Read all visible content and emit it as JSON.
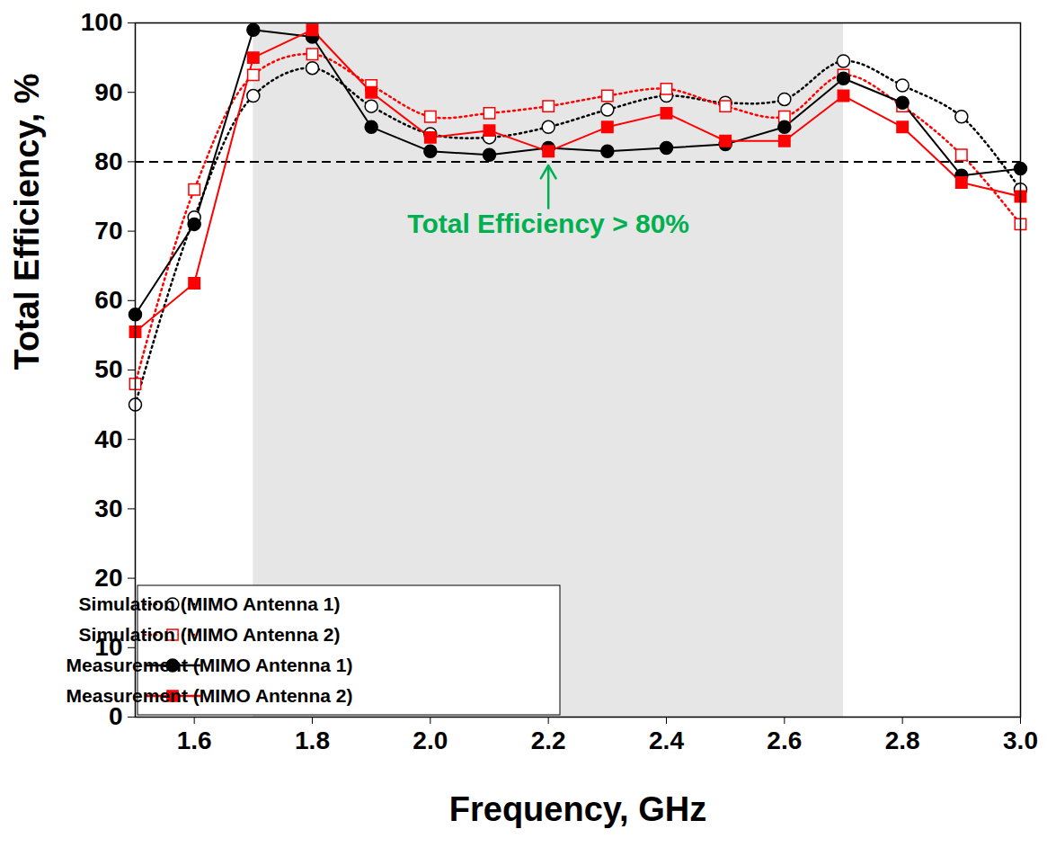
{
  "chart_data": {
    "type": "line",
    "x_label": "Frequency, GHz",
    "y_label": "Total Efficiency, %",
    "x": [
      1.5,
      1.6,
      1.7,
      1.8,
      1.9,
      2.0,
      2.1,
      2.2,
      2.3,
      2.4,
      2.5,
      2.6,
      2.7,
      2.8,
      2.9,
      3.0
    ],
    "series": [
      {
        "name": "Simulation (MIMO Antenna 1)",
        "color": "#000000",
        "line_style": "dotted",
        "marker": "circle_open",
        "values": [
          45,
          72,
          89.5,
          93.5,
          88,
          84,
          83.5,
          85,
          87.5,
          89.5,
          88.5,
          89,
          94.5,
          91,
          86.5,
          76
        ]
      },
      {
        "name": "Simulation (MIMO Antenna 2)",
        "color": "#ff0000",
        "line_style": "dotted",
        "marker": "square_open",
        "values": [
          48,
          76,
          92.5,
          95.5,
          91,
          86.5,
          87,
          88,
          89.5,
          90.5,
          88,
          86.5,
          92.5,
          88,
          81,
          71
        ]
      },
      {
        "name": "Measurement (MIMO Antenna 1)",
        "color": "#000000",
        "line_style": "solid",
        "marker": "circle",
        "values": [
          58,
          71,
          99,
          98,
          85,
          81.5,
          81,
          82,
          81.5,
          82,
          82.5,
          85,
          92,
          88.5,
          78,
          79
        ]
      },
      {
        "name": "Measurement (MIMO Antenna 2)",
        "color": "#ff0000",
        "line_style": "solid",
        "marker": "square",
        "values": [
          55.5,
          62.5,
          95,
          99,
          90,
          83.5,
          84.5,
          81.5,
          85,
          87,
          83,
          83,
          89.5,
          85,
          77,
          75
        ]
      }
    ],
    "xlim": [
      1.5,
      3.0
    ],
    "xticks": [
      1.6,
      1.8,
      {
        "value": 2,
        "label": "2.0"
      },
      2.2,
      2.4,
      2.6,
      2.8,
      {
        "value": 3,
        "label": "3.0"
      }
    ],
    "ylim": [
      0,
      100
    ],
    "yticks": [
      0,
      10,
      20,
      30,
      40,
      50,
      60,
      70,
      80,
      90,
      100
    ],
    "shaded_range": [
      1.7,
      2.7
    ],
    "reference_line": 80,
    "annotation": {
      "text": "Total Efficiency > 80%",
      "x": 2.2,
      "y": 71,
      "color": "#00b050"
    },
    "legend": "bottom-left",
    "grid": false
  }
}
